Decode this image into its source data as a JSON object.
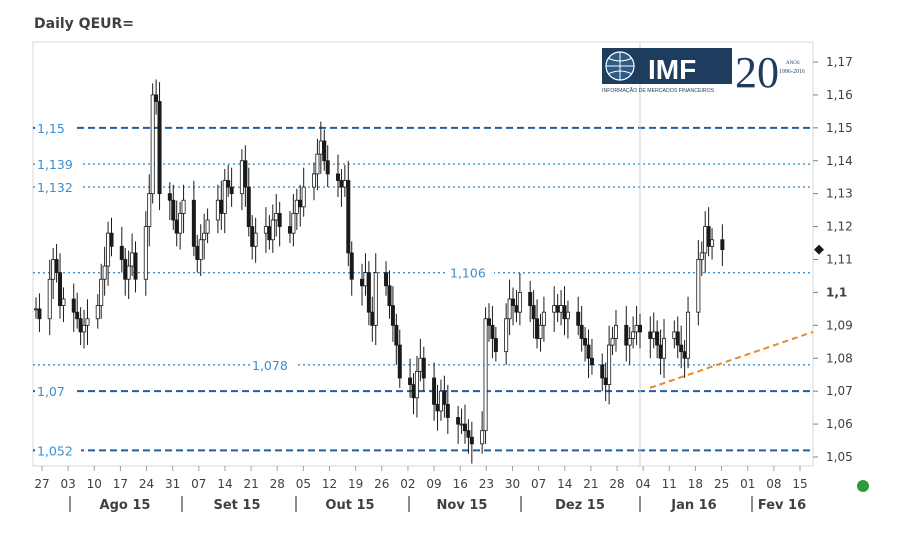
{
  "title": "Daily QEUR=",
  "logo": {
    "text": "IMF",
    "subtitle": "INFORMAÇÃO DE MERCADOS FINANCEIROS",
    "anniversary": "20",
    "anos": "ANOS",
    "years": "1996-2016"
  },
  "colors": {
    "grid_dashed": "#1f5fa8",
    "grid_dotted": "#3a8fd0",
    "candles": "#1a1a1a",
    "trendline": "#e8892b",
    "axis_text": "#404040",
    "hline_text": "#3a8fd0"
  },
  "chart_data": {
    "type": "candlestick",
    "ylim": [
      1.05,
      1.17
    ],
    "y_ticks": [
      "1,17",
      "1,16",
      "1,15",
      "1,14",
      "1,13",
      "1,12",
      "1,11",
      "1,1",
      "1,09",
      "1,08",
      "1,07",
      "1,06",
      "1,05"
    ],
    "y_tick_values": [
      1.17,
      1.16,
      1.15,
      1.14,
      1.13,
      1.12,
      1.11,
      1.1,
      1.09,
      1.08,
      1.07,
      1.06,
      1.05
    ],
    "x_ticks": [
      "27",
      "03",
      "10",
      "17",
      "24",
      "31",
      "07",
      "14",
      "21",
      "28",
      "05",
      "12",
      "19",
      "26",
      "02",
      "09",
      "16",
      "23",
      "30",
      "07",
      "14",
      "21",
      "28",
      "04",
      "11",
      "18",
      "25",
      "01",
      "08",
      "15"
    ],
    "months": [
      "Ago 15",
      "Set 15",
      "Out 15",
      "Nov 15",
      "Dez 15",
      "Jan 16",
      "Fev 16"
    ],
    "horizontal_levels": [
      {
        "label": "1,15",
        "value": 1.15,
        "style": "dashed"
      },
      {
        "label": "1,139",
        "value": 1.139,
        "style": "dotted"
      },
      {
        "label": "1,132",
        "value": 1.132,
        "style": "dotted"
      },
      {
        "label": "1,106",
        "value": 1.106,
        "style": "dotted"
      },
      {
        "label": "1,078",
        "value": 1.078,
        "style": "dotted"
      },
      {
        "label": "1,07",
        "value": 1.07,
        "style": "dashed"
      },
      {
        "label": "1,052",
        "value": 1.052,
        "style": "dashed"
      }
    ],
    "last_value": 1.113,
    "trendline": {
      "from_day": 199,
      "from_value": 1.071,
      "to_day": 246,
      "to_value": 1.088
    },
    "closes": [
      [
        0,
        1.095
      ],
      [
        1,
        1.092
      ],
      [
        4,
        1.104
      ],
      [
        5,
        1.11
      ],
      [
        6,
        1.106
      ],
      [
        7,
        1.096
      ],
      [
        8,
        1.098
      ],
      [
        11,
        1.094
      ],
      [
        12,
        1.092
      ],
      [
        13,
        1.088
      ],
      [
        14,
        1.09
      ],
      [
        15,
        1.092
      ],
      [
        18,
        1.096
      ],
      [
        19,
        1.104
      ],
      [
        20,
        1.108
      ],
      [
        21,
        1.118
      ],
      [
        22,
        1.114
      ],
      [
        25,
        1.11
      ],
      [
        26,
        1.104
      ],
      [
        27,
        1.108
      ],
      [
        28,
        1.112
      ],
      [
        29,
        1.104
      ],
      [
        32,
        1.12
      ],
      [
        33,
        1.13
      ],
      [
        34,
        1.16
      ],
      [
        35,
        1.158
      ],
      [
        36,
        1.13
      ],
      [
        39,
        1.128
      ],
      [
        40,
        1.122
      ],
      [
        41,
        1.118
      ],
      [
        42,
        1.124
      ],
      [
        43,
        1.128
      ],
      [
        46,
        1.114
      ],
      [
        47,
        1.11
      ],
      [
        48,
        1.116
      ],
      [
        49,
        1.118
      ],
      [
        50,
        1.122
      ],
      [
        53,
        1.128
      ],
      [
        54,
        1.124
      ],
      [
        55,
        1.134
      ],
      [
        56,
        1.132
      ],
      [
        57,
        1.13
      ],
      [
        60,
        1.14
      ],
      [
        61,
        1.132
      ],
      [
        62,
        1.12
      ],
      [
        63,
        1.114
      ],
      [
        64,
        1.118
      ],
      [
        67,
        1.12
      ],
      [
        68,
        1.116
      ],
      [
        69,
        1.122
      ],
      [
        70,
        1.124
      ],
      [
        71,
        1.12
      ],
      [
        74,
        1.118
      ],
      [
        75,
        1.124
      ],
      [
        76,
        1.128
      ],
      [
        77,
        1.126
      ],
      [
        78,
        1.132
      ],
      [
        81,
        1.136
      ],
      [
        82,
        1.142
      ],
      [
        83,
        1.146
      ],
      [
        84,
        1.14
      ],
      [
        85,
        1.136
      ],
      [
        88,
        1.134
      ],
      [
        89,
        1.132
      ],
      [
        90,
        1.134
      ],
      [
        91,
        1.112
      ],
      [
        92,
        1.104
      ],
      [
        95,
        1.102
      ],
      [
        96,
        1.106
      ],
      [
        97,
        1.094
      ],
      [
        98,
        1.09
      ],
      [
        99,
        1.106
      ],
      [
        102,
        1.102
      ],
      [
        103,
        1.096
      ],
      [
        104,
        1.09
      ],
      [
        105,
        1.084
      ],
      [
        106,
        1.074
      ],
      [
        109,
        1.072
      ],
      [
        110,
        1.068
      ],
      [
        111,
        1.076
      ],
      [
        112,
        1.08
      ],
      [
        113,
        1.074
      ],
      [
        116,
        1.066
      ],
      [
        117,
        1.064
      ],
      [
        118,
        1.07
      ],
      [
        119,
        1.066
      ],
      [
        120,
        1.062
      ],
      [
        123,
        1.06
      ],
      [
        124,
        1.06
      ],
      [
        125,
        1.058
      ],
      [
        126,
        1.056
      ],
      [
        127,
        1.054
      ],
      [
        130,
        1.058
      ],
      [
        131,
        1.092
      ],
      [
        132,
        1.09
      ],
      [
        133,
        1.086
      ],
      [
        134,
        1.082
      ],
      [
        137,
        1.092
      ],
      [
        138,
        1.098
      ],
      [
        139,
        1.096
      ],
      [
        140,
        1.094
      ],
      [
        141,
        1.1
      ],
      [
        144,
        1.096
      ],
      [
        145,
        1.092
      ],
      [
        146,
        1.086
      ],
      [
        147,
        1.09
      ],
      [
        148,
        1.094
      ],
      [
        151,
        1.096
      ],
      [
        152,
        1.094
      ],
      [
        153,
        1.096
      ],
      [
        154,
        1.092
      ],
      [
        155,
        1.094
      ],
      [
        158,
        1.09
      ],
      [
        159,
        1.086
      ],
      [
        160,
        1.084
      ],
      [
        161,
        1.08
      ],
      [
        162,
        1.078
      ],
      [
        165,
        1.074
      ],
      [
        166,
        1.072
      ],
      [
        167,
        1.084
      ],
      [
        168,
        1.086
      ],
      [
        169,
        1.09
      ],
      [
        172,
        1.084
      ],
      [
        173,
        1.086
      ],
      [
        174,
        1.088
      ],
      [
        175,
        1.09
      ],
      [
        176,
        1.088
      ],
      [
        179,
        1.086
      ],
      [
        180,
        1.088
      ],
      [
        181,
        1.084
      ],
      [
        182,
        1.08
      ],
      [
        183,
        1.086
      ],
      [
        186,
        1.088
      ],
      [
        187,
        1.084
      ],
      [
        188,
        1.082
      ],
      [
        189,
        1.08
      ],
      [
        190,
        1.094
      ],
      [
        193,
        1.11
      ],
      [
        194,
        1.112
      ],
      [
        195,
        1.12
      ],
      [
        196,
        1.114
      ],
      [
        197,
        1.116
      ],
      [
        200,
        1.113
      ]
    ]
  }
}
